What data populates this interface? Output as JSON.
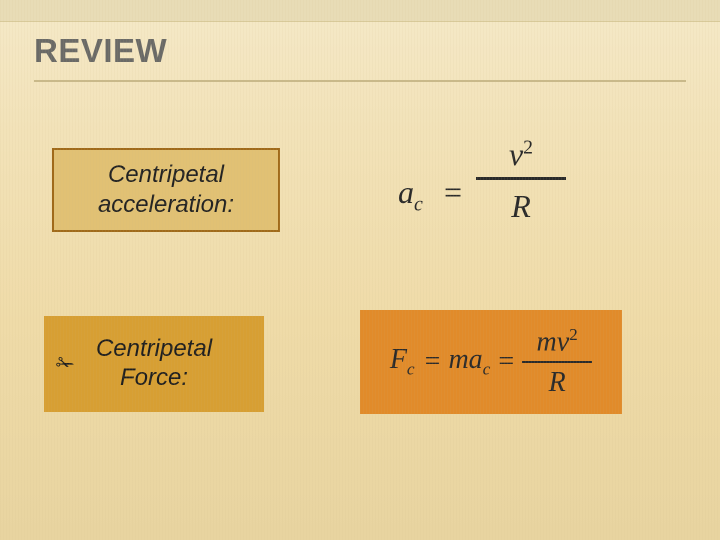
{
  "title": {
    "text": "REVIEW",
    "color": "#6a6a67",
    "fontsize": 33
  },
  "underline_color": "#c9b98a",
  "box1": {
    "line1": "Centripetal",
    "line2": "acceleration:",
    "bg": "#e1c174",
    "border": "#a06a1a",
    "text_color": "#222222",
    "fontsize": 24
  },
  "formula1": {
    "a": "a",
    "a_sub": "c",
    "eq": "=",
    "num_v": "v",
    "num_exp": "2",
    "den": "R",
    "text_color": "#2a2a2a",
    "bar_color": "#2a2a2a",
    "fontsize": 32
  },
  "box2": {
    "bullet": "✁",
    "line1": "Centripetal",
    "line2": "Force:",
    "bg": "#d79f33",
    "text_color": "#1f1f1f",
    "fontsize": 24
  },
  "formula2": {
    "F": "F",
    "F_sub": "c",
    "eq": "=",
    "m": "m",
    "a": "a",
    "a_sub": "c",
    "num_m": "m",
    "num_v": "v",
    "num_exp": "2",
    "den": "R",
    "bg": "#e18b2a",
    "text_color": "#2a2a2a",
    "fontsize": 28
  },
  "background": {
    "top": "#f5e9c8",
    "mid": "#efdba8",
    "bottom": "#e8d4a0"
  }
}
